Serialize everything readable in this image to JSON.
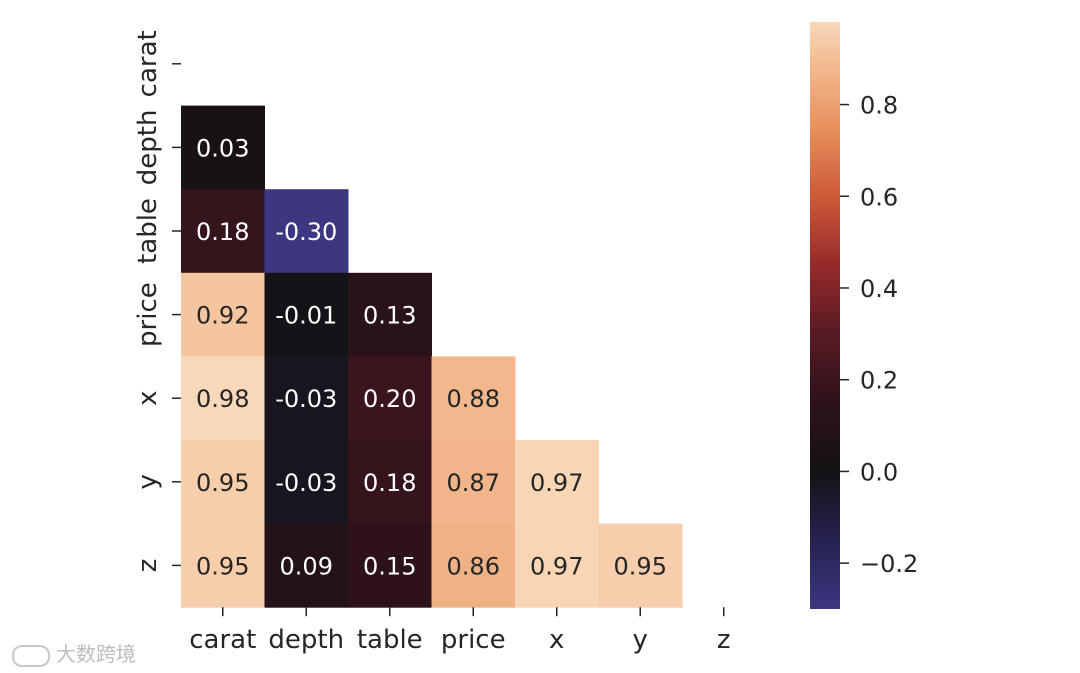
{
  "chart_data": {
    "type": "heatmap",
    "variables": [
      "carat",
      "depth",
      "table",
      "price",
      "x",
      "y",
      "z"
    ],
    "mask": "upper-triangle",
    "cells": [
      {
        "row": "depth",
        "col": "carat",
        "value": 0.03,
        "label": "0.03"
      },
      {
        "row": "table",
        "col": "carat",
        "value": 0.18,
        "label": "0.18"
      },
      {
        "row": "table",
        "col": "depth",
        "value": -0.3,
        "label": "-0.30"
      },
      {
        "row": "price",
        "col": "carat",
        "value": 0.92,
        "label": "0.92"
      },
      {
        "row": "price",
        "col": "depth",
        "value": -0.01,
        "label": "-0.01"
      },
      {
        "row": "price",
        "col": "table",
        "value": 0.13,
        "label": "0.13"
      },
      {
        "row": "x",
        "col": "carat",
        "value": 0.98,
        "label": "0.98"
      },
      {
        "row": "x",
        "col": "depth",
        "value": -0.03,
        "label": "-0.03"
      },
      {
        "row": "x",
        "col": "table",
        "value": 0.2,
        "label": "0.20"
      },
      {
        "row": "x",
        "col": "price",
        "value": 0.88,
        "label": "0.88"
      },
      {
        "row": "y",
        "col": "carat",
        "value": 0.95,
        "label": "0.95"
      },
      {
        "row": "y",
        "col": "depth",
        "value": -0.03,
        "label": "-0.03"
      },
      {
        "row": "y",
        "col": "table",
        "value": 0.18,
        "label": "0.18"
      },
      {
        "row": "y",
        "col": "price",
        "value": 0.87,
        "label": "0.87"
      },
      {
        "row": "y",
        "col": "x",
        "value": 0.97,
        "label": "0.97"
      },
      {
        "row": "z",
        "col": "carat",
        "value": 0.95,
        "label": "0.95"
      },
      {
        "row": "z",
        "col": "depth",
        "value": 0.09,
        "label": "0.09"
      },
      {
        "row": "z",
        "col": "table",
        "value": 0.15,
        "label": "0.15"
      },
      {
        "row": "z",
        "col": "price",
        "value": 0.86,
        "label": "0.86"
      },
      {
        "row": "z",
        "col": "x",
        "value": 0.97,
        "label": "0.97"
      },
      {
        "row": "z",
        "col": "y",
        "value": 0.95,
        "label": "0.95"
      }
    ],
    "colorbar": {
      "range": [
        -0.3,
        0.98
      ],
      "ticks": [
        {
          "value": 0.8,
          "label": "0.8"
        },
        {
          "value": 0.6,
          "label": "0.6"
        },
        {
          "value": 0.4,
          "label": "0.4"
        },
        {
          "value": 0.2,
          "label": "0.2"
        },
        {
          "value": 0.0,
          "label": "0.0"
        },
        {
          "value": -0.2,
          "label": "−0.2"
        }
      ],
      "colormap": "icefire-like diverging",
      "colors": {
        "low": "#3b3680",
        "mid": "#141414",
        "high": "#f7d8b8"
      }
    },
    "title": "",
    "xlabel": "",
    "ylabel": "",
    "grid": false
  },
  "watermark": {
    "text": "大数跨境"
  }
}
